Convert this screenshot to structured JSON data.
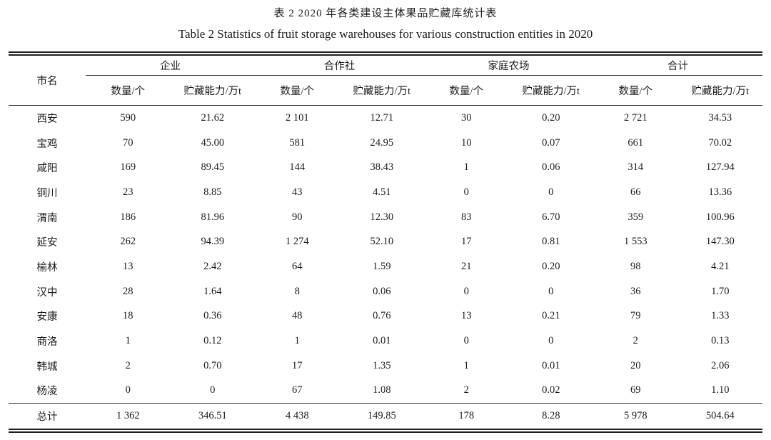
{
  "caption": {
    "zh": "表 2 2020 年各类建设主体果品贮藏库统计表",
    "en": "Table 2 Statistics of fruit storage warehouses for various construction entities in 2020"
  },
  "table": {
    "row_header": "市名",
    "groups": [
      {
        "label": "企业",
        "sub": [
          "数量/个",
          "贮藏能力/万t"
        ]
      },
      {
        "label": "合作社",
        "sub": [
          "数量/个",
          "贮藏能力/万t"
        ]
      },
      {
        "label": "家庭农场",
        "sub": [
          "数量/个",
          "贮藏能力/万t"
        ]
      },
      {
        "label": "合计",
        "sub": [
          "数量/个",
          "贮藏能力/万t"
        ]
      }
    ],
    "rows": [
      {
        "city": "西安",
        "values": [
          "590",
          "21.62",
          "2 101",
          "12.71",
          "30",
          "0.20",
          "2 721",
          "34.53"
        ]
      },
      {
        "city": "宝鸡",
        "values": [
          "70",
          "45.00",
          "581",
          "24.95",
          "10",
          "0.07",
          "661",
          "70.02"
        ]
      },
      {
        "city": "咸阳",
        "values": [
          "169",
          "89.45",
          "144",
          "38.43",
          "1",
          "0.06",
          "314",
          "127.94"
        ]
      },
      {
        "city": "铜川",
        "values": [
          "23",
          "8.85",
          "43",
          "4.51",
          "0",
          "0",
          "66",
          "13.36"
        ]
      },
      {
        "city": "渭南",
        "values": [
          "186",
          "81.96",
          "90",
          "12.30",
          "83",
          "6.70",
          "359",
          "100.96"
        ]
      },
      {
        "city": "延安",
        "values": [
          "262",
          "94.39",
          "1 274",
          "52.10",
          "17",
          "0.81",
          "1 553",
          "147.30"
        ]
      },
      {
        "city": "榆林",
        "values": [
          "13",
          "2.42",
          "64",
          "1.59",
          "21",
          "0.20",
          "98",
          "4.21"
        ]
      },
      {
        "city": "汉中",
        "values": [
          "28",
          "1.64",
          "8",
          "0.06",
          "0",
          "0",
          "36",
          "1.70"
        ]
      },
      {
        "city": "安康",
        "values": [
          "18",
          "0.36",
          "48",
          "0.76",
          "13",
          "0.21",
          "79",
          "1.33"
        ]
      },
      {
        "city": "商洛",
        "values": [
          "1",
          "0.12",
          "1",
          "0.01",
          "0",
          "0",
          "2",
          "0.13"
        ]
      },
      {
        "city": "韩城",
        "values": [
          "2",
          "0.70",
          "17",
          "1.35",
          "1",
          "0.01",
          "20",
          "2.06"
        ]
      },
      {
        "city": "杨凌",
        "values": [
          "0",
          "0",
          "67",
          "1.08",
          "2",
          "0.02",
          "69",
          "1.10"
        ]
      }
    ],
    "total_row": {
      "city": "总计",
      "values": [
        "1 362",
        "346.51",
        "4 438",
        "149.85",
        "178",
        "8.28",
        "5 978",
        "504.64"
      ]
    }
  }
}
